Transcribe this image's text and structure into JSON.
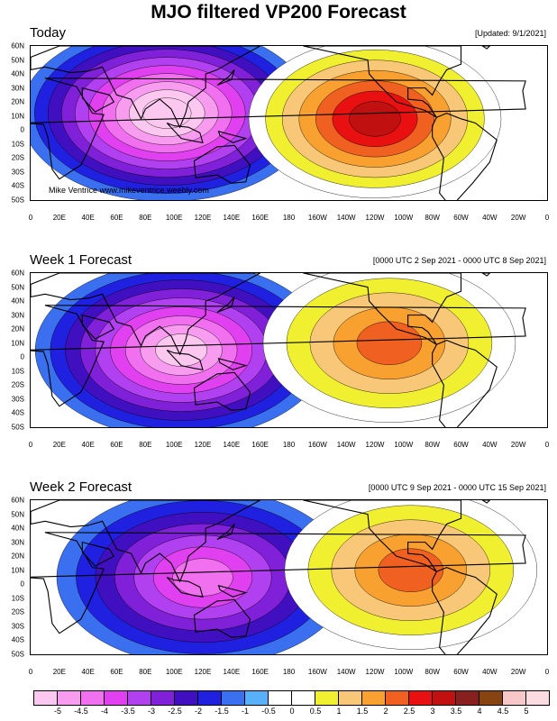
{
  "title": "MJO filtered VP200 Forecast",
  "credit": "Mike Ventrice www.mikeventrice.weebly.com",
  "lat_labels": [
    "60N",
    "50N",
    "40N",
    "30N",
    "20N",
    "10N",
    "0",
    "10S",
    "20S",
    "30S",
    "40S",
    "50S"
  ],
  "lon_labels": [
    "0",
    "20E",
    "40E",
    "60E",
    "80E",
    "100E",
    "120E",
    "140E",
    "160E",
    "180",
    "160W",
    "140W",
    "120W",
    "100W",
    "80W",
    "60W",
    "40W",
    "20W",
    "0"
  ],
  "panels": [
    {
      "title": "Today",
      "stamp": "[Updated: 9/1/2021]",
      "neg_center": {
        "lon": 95,
        "lat": 12,
        "peak": -5
      },
      "pos_center": {
        "lon": 240,
        "lat": 8,
        "peak": 3.5
      }
    },
    {
      "title": "Week 1 Forecast",
      "stamp": "[0000 UTC 2 Sep 2021 - 0000 UTC 8 Sep 2021]",
      "neg_center": {
        "lon": 105,
        "lat": 5,
        "peak": -4.5
      },
      "pos_center": {
        "lon": 250,
        "lat": 10,
        "peak": 2.5
      }
    },
    {
      "title": "Week 2 Forecast",
      "stamp": "[0000 UTC 9 Sep 2021 - 0000 UTC 15 Sep 2021]",
      "neg_center": {
        "lon": 120,
        "lat": 5,
        "peak": -3.5
      },
      "pos_center": {
        "lon": 265,
        "lat": 10,
        "peak": 2.5
      }
    }
  ],
  "colorbar": {
    "labels": [
      "-5",
      "-4.5",
      "-4",
      "-3.5",
      "-3",
      "-2.5",
      "-2",
      "-1.5",
      "-1",
      "-0.5",
      "0",
      "0.5",
      "1",
      "1.5",
      "2",
      "2.5",
      "3",
      "3.5",
      "4",
      "4.5",
      "5"
    ],
    "colors": [
      "#fcc8f0",
      "#f89cf0",
      "#f070f0",
      "#e040f0",
      "#b040f0",
      "#8020d8",
      "#4010c0",
      "#2020e0",
      "#3a70f0",
      "#58b0f8",
      "#ffffff",
      "#ffffff",
      "#f0f030",
      "#f8c878",
      "#f8a030",
      "#f06020",
      "#e81010",
      "#c01010",
      "#882020",
      "#884410",
      "#f8c8c8",
      "#fcdce0"
    ]
  },
  "colors": {
    "land_outline": "#000000",
    "border": "#000000"
  }
}
